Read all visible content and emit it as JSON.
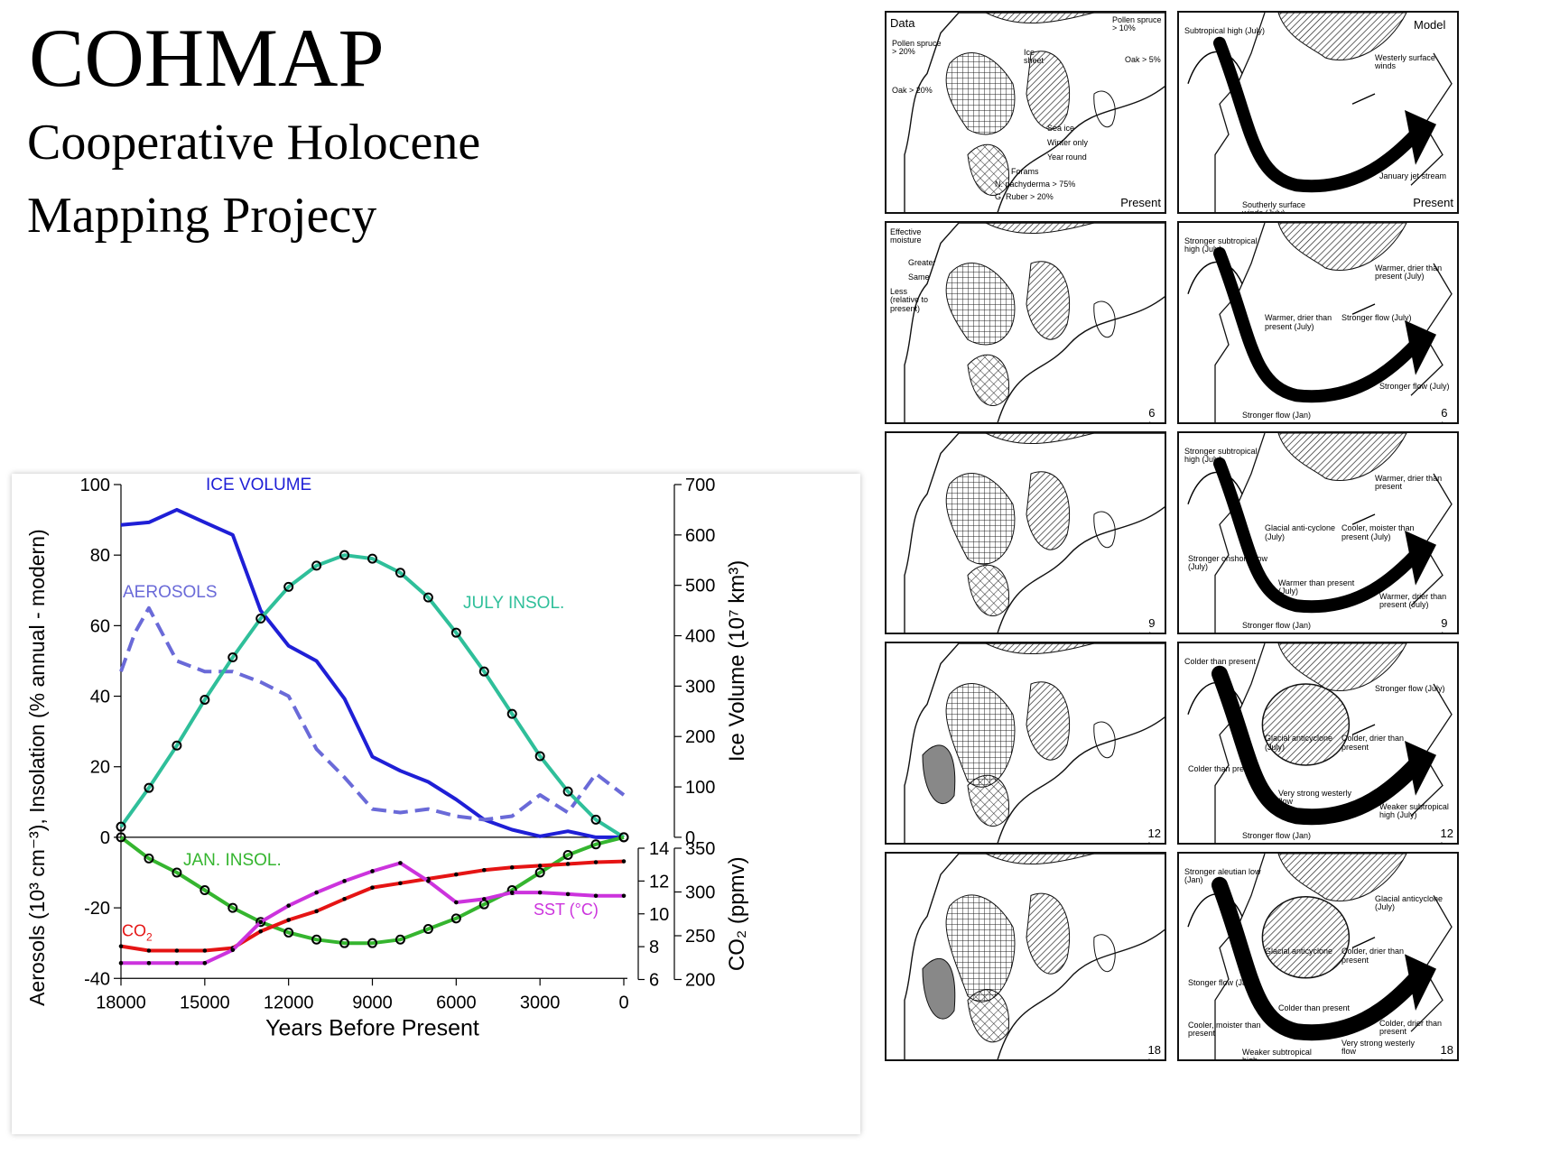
{
  "heading": {
    "title": "COHMAP",
    "subtitle_line1": "Cooperative Holocene",
    "subtitle_line2": "Mapping Projecy"
  },
  "colors": {
    "ice": "#1f1fd6",
    "aerosols": "#6a6ad8",
    "july": "#2fbf9a",
    "jan": "#35b52f",
    "co2": "#e51414",
    "sst": "#cc33dd"
  },
  "chart_data": {
    "type": "line",
    "xlabel": "Years Before Present",
    "x_ticks": [
      "18000",
      "15000",
      "12000",
      "9000",
      "6000",
      "3000",
      "0"
    ],
    "x_range": [
      18000,
      0
    ],
    "left_axis": {
      "label": "Aerosols (10³ cm⁻³), Insolation (% annual - modern)",
      "range": [
        -40,
        100
      ],
      "ticks": [
        "100",
        "80",
        "60",
        "40",
        "20",
        "0",
        "-20",
        "-40"
      ]
    },
    "right_axis_ice": {
      "label": "Ice Volume  (10⁷ km³)",
      "range": [
        0,
        700
      ],
      "ticks": [
        "700",
        "600",
        "500",
        "400",
        "300",
        "200",
        "100",
        "0"
      ]
    },
    "right_axis_sst": {
      "range": [
        6,
        14
      ],
      "ticks": [
        "14",
        "12",
        "10",
        "8",
        "6"
      ]
    },
    "right_axis_co2": {
      "label": "CO₂ (ppmv)",
      "range": [
        200,
        350
      ],
      "ticks": [
        "350",
        "300",
        "250",
        "200"
      ]
    },
    "series": [
      {
        "name": "ICE VOLUME",
        "axis": "ice",
        "style": "solid",
        "x": [
          18000,
          17000,
          16000,
          15000,
          14000,
          13000,
          12000,
          11000,
          10000,
          9000,
          8000,
          7000,
          6000,
          5000,
          4000,
          3000,
          2000,
          1000,
          0
        ],
        "y": [
          620,
          625,
          650,
          625,
          600,
          450,
          380,
          350,
          275,
          160,
          132,
          110,
          75,
          35,
          15,
          2,
          12,
          0,
          0
        ]
      },
      {
        "name": "AEROSOLS",
        "axis": "left",
        "style": "dashed",
        "x": [
          18000,
          17500,
          17000,
          16000,
          15000,
          14000,
          13000,
          12000,
          11000,
          10000,
          9000,
          8000,
          7000,
          6000,
          5000,
          4000,
          3000,
          2000,
          1000,
          0
        ],
        "y": [
          47,
          58,
          65,
          50,
          47,
          47,
          44,
          40,
          25,
          17,
          8,
          7,
          8,
          6,
          5,
          6,
          12,
          7,
          18,
          12
        ]
      },
      {
        "name": "JULY INSOL.",
        "axis": "left",
        "style": "solid-markers",
        "x": [
          18000,
          17000,
          16000,
          15000,
          14000,
          13000,
          12000,
          11000,
          10000,
          9000,
          8000,
          7000,
          6000,
          5000,
          4000,
          3000,
          2000,
          1000,
          0
        ],
        "y": [
          3,
          14,
          26,
          39,
          51,
          62,
          71,
          77,
          80,
          79,
          75,
          68,
          58,
          47,
          35,
          23,
          13,
          5,
          0
        ]
      },
      {
        "name": "JAN. INSOL.",
        "axis": "left",
        "style": "solid-markers",
        "x": [
          18000,
          17000,
          16000,
          15000,
          14000,
          13000,
          12000,
          11000,
          10000,
          9000,
          8000,
          7000,
          6000,
          5000,
          4000,
          3000,
          2000,
          1000,
          0
        ],
        "y": [
          0,
          -6,
          -10,
          -15,
          -20,
          -24,
          -27,
          -29,
          -30,
          -30,
          -29,
          -26,
          -23,
          -19,
          -15,
          -10,
          -5,
          -2,
          0
        ]
      },
      {
        "name": "CO₂",
        "axis": "co2",
        "style": "solid-dots",
        "x": [
          18000,
          17000,
          16000,
          15000,
          14000,
          13000,
          12000,
          11000,
          10000,
          9000,
          8000,
          7000,
          6000,
          5000,
          4000,
          3000,
          2000,
          1000,
          0
        ],
        "y": [
          238,
          233,
          233,
          233,
          236,
          255,
          268,
          278,
          292,
          305,
          310,
          315,
          320,
          325,
          328,
          330,
          332,
          334,
          335
        ]
      },
      {
        "name": "SST (°C)",
        "axis": "sst",
        "style": "solid-dots",
        "x": [
          18000,
          17000,
          16000,
          15000,
          14000,
          13000,
          12000,
          11000,
          10000,
          9000,
          8000,
          7000,
          6000,
          5000,
          4000,
          3000,
          2000,
          1000,
          0
        ],
        "y": [
          7.0,
          7.0,
          7.0,
          7.0,
          7.8,
          9.5,
          10.5,
          11.3,
          12.0,
          12.6,
          13.1,
          12.0,
          10.7,
          10.9,
          11.3,
          11.3,
          11.2,
          11.1,
          11.1
        ]
      }
    ],
    "annotations": {
      "ice": "ICE VOLUME",
      "aerosols": "AEROSOLS",
      "july": "JULY INSOL.",
      "jan": "JAN. INSOL.",
      "co2_main": "CO",
      "co2_sub": "2",
      "sst": "SST (°C)"
    }
  },
  "maps": {
    "legend_data_title": "Data",
    "legend_model_title": "Model",
    "pollen_spruce20": "Pollen spruce > 20%",
    "oak20": "Oak > 20%",
    "pollen_spruce10": "Pollen spruce > 10%",
    "oak5": "Oak > 5%",
    "ice_sheet": "Ice sheet",
    "sea_ice": "Sea ice",
    "winter_only": "Winter only",
    "year_round": "Year round",
    "forams": "Forams",
    "n_pachy": "N. pachyderma > 75%",
    "g_ruber": "G. Ruber > 20%",
    "eff_moisture": "Effective moisture",
    "greater": "Greater",
    "same": "Same",
    "less": "Less (relative to present)",
    "rows": [
      {
        "left_label": "Present",
        "right_label": "Present",
        "notes": [
          "Subtropical high (July)",
          "Westerly surface winds",
          "January jet stream",
          "Southerly surface winds (July)"
        ]
      },
      {
        "left_label": "6 ka",
        "right_label": "6 ka",
        "notes": [
          "Stronger subtropical high (July)",
          "Warmer, drier than present (July)",
          "Stronger flow (July)",
          "Stronger flow (Jan)",
          "Warmer, drier than present (July)",
          "Stronger flow (July)"
        ]
      },
      {
        "left_label": "9 ka",
        "right_label": "9 ka",
        "notes": [
          "Stronger subtropical high (July)",
          "Warmer, drier than present",
          "Warmer, drier than present (July)",
          "Stronger flow (Jan)",
          "Glacial anti-cyclone (July)",
          "Cooler, moister than present (July)",
          "Stronger onshore flow (July)",
          "Warmer than present (July)"
        ]
      },
      {
        "left_label": "12 ka",
        "right_label": "12 ka",
        "notes": [
          "Colder than present",
          "Stronger flow (July)",
          "Weaker subtropical high (July)",
          "Stronger flow (Jan)",
          "Glacial anticyclone (July)",
          "Colder, drier than present",
          "Colder than present",
          "Very strong westerly flow"
        ]
      },
      {
        "left_label": "18 ka",
        "right_label": "18 ka",
        "notes": [
          "Stronger aleutian low (Jan)",
          "Glacial anticyclone (July)",
          "Colder, drier than present",
          "Weaker subtropical high",
          "Glacial anticyclone",
          "Colder, drier than present",
          "Stonger flow (Jan)",
          "Colder than present",
          "Cooler, moister than present",
          "Very strong westerly flow"
        ]
      }
    ]
  }
}
